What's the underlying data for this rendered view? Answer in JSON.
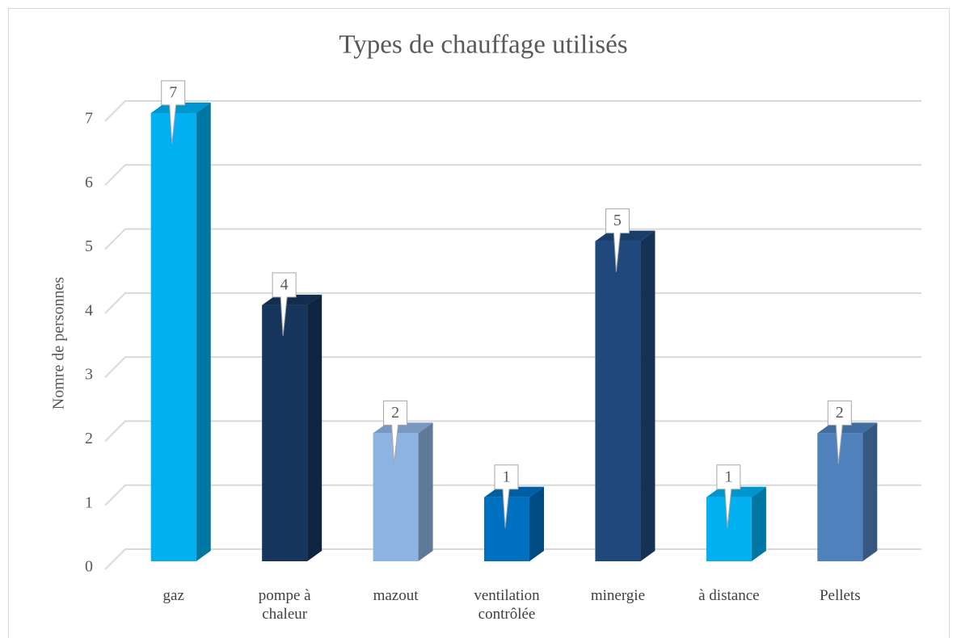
{
  "chart_data": {
    "type": "bar3d",
    "title": "Types de chauffage utilisés",
    "y_label": "Nomre de personnes",
    "categories": [
      "gaz",
      "pompe à chaleur",
      "mazout",
      "ventilation contrôlée",
      "minergie",
      "à distance",
      "Pellets"
    ],
    "values": [
      7,
      4,
      2,
      1,
      5,
      1,
      2
    ],
    "colors": [
      "#00b0f0",
      "#17365d",
      "#8db3e2",
      "#0070c0",
      "#1f497d",
      "#00b0f0",
      "#4f81bd"
    ],
    "ylim": [
      0,
      7
    ],
    "yticks": [
      0,
      1,
      2,
      3,
      4,
      5,
      6,
      7
    ],
    "grid": true,
    "data_labels": true
  }
}
